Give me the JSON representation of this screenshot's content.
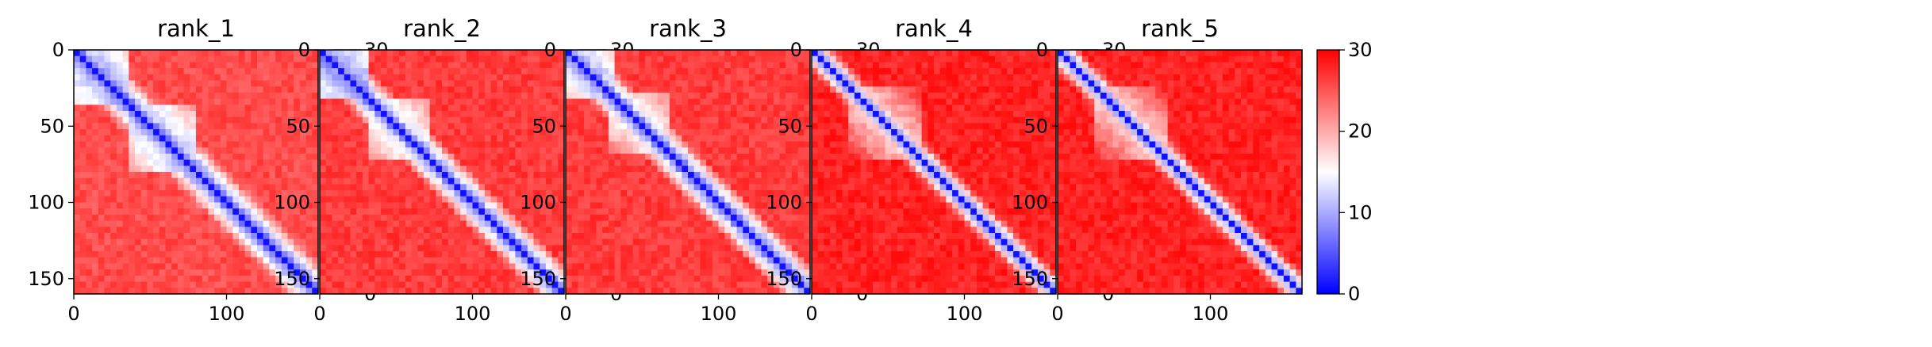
{
  "chart_data": [
    {
      "type": "heatmap",
      "title": "rank_1",
      "x_ticks": [
        "0",
        "100"
      ],
      "y_ticks": [
        "0",
        "50",
        "100",
        "150"
      ],
      "colorbar_ticks": [
        "0",
        "10",
        "20",
        "30"
      ],
      "xlim": [
        0,
        160
      ],
      "ylim": [
        160,
        0
      ],
      "clim": [
        0,
        30
      ],
      "colormap": "bwr",
      "profile": {
        "domains": [
          [
            0,
            36,
            9
          ],
          [
            36,
            78,
            10
          ]
        ],
        "bulk": 25.5,
        "near_diag_width": 22
      }
    },
    {
      "type": "heatmap",
      "title": "rank_2",
      "x_ticks": [
        "0",
        "100"
      ],
      "y_ticks": [
        "0",
        "50",
        "100",
        "150"
      ],
      "colorbar_ticks": [
        "0",
        "10",
        "20",
        "30"
      ],
      "xlim": [
        0,
        160
      ],
      "ylim": [
        160,
        0
      ],
      "clim": [
        0,
        30
      ],
      "colormap": "bwr",
      "profile": {
        "domains": [
          [
            0,
            32,
            8
          ],
          [
            32,
            72,
            12
          ]
        ],
        "bulk": 26.5,
        "near_diag_width": 20
      }
    },
    {
      "type": "heatmap",
      "title": "rank_3",
      "x_ticks": [
        "0",
        "100"
      ],
      "y_ticks": [
        "0",
        "50",
        "100",
        "150"
      ],
      "colorbar_ticks": [
        "0",
        "10",
        "20",
        "30"
      ],
      "xlim": [
        0,
        160
      ],
      "ylim": [
        160,
        0
      ],
      "clim": [
        0,
        30
      ],
      "colormap": "bwr",
      "profile": {
        "domains": [
          [
            0,
            30,
            10
          ],
          [
            30,
            68,
            13
          ]
        ],
        "bulk": 26.5,
        "near_diag_width": 20
      }
    },
    {
      "type": "heatmap",
      "title": "rank_4",
      "x_ticks": [
        "0",
        "100"
      ],
      "y_ticks": [
        "0",
        "50",
        "100",
        "150"
      ],
      "colorbar_ticks": [
        "0",
        "10",
        "20",
        "30"
      ],
      "xlim": [
        0,
        160
      ],
      "ylim": [
        160,
        0
      ],
      "clim": [
        0,
        30
      ],
      "colormap": "bwr",
      "profile": {
        "domains": [
          [
            25,
            70,
            16
          ]
        ],
        "bulk": 28,
        "near_diag_width": 14
      }
    },
    {
      "type": "heatmap",
      "title": "rank_5",
      "x_ticks": [
        "0",
        "100"
      ],
      "y_ticks": [
        "0",
        "50",
        "100",
        "150"
      ],
      "colorbar_ticks": [
        "0",
        "10",
        "20",
        "30"
      ],
      "xlim": [
        0,
        160
      ],
      "ylim": [
        160,
        0
      ],
      "clim": [
        0,
        30
      ],
      "colormap": "bwr",
      "profile": {
        "domains": [
          [
            25,
            70,
            16
          ]
        ],
        "bulk": 28,
        "near_diag_width": 14
      }
    }
  ]
}
